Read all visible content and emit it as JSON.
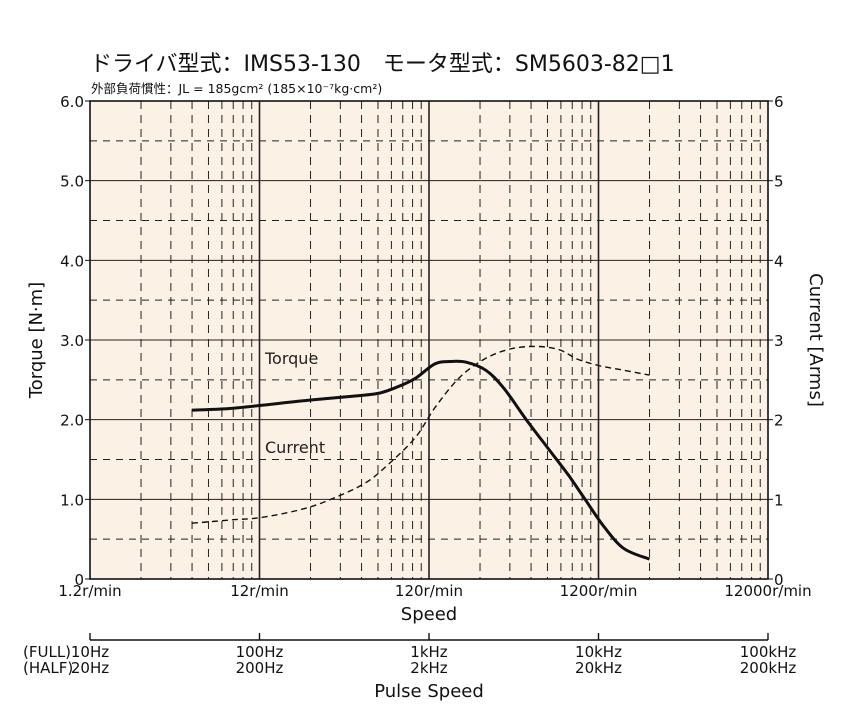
{
  "chart_data": {
    "type": "line",
    "title": "ドライバ型式：IMS53-130　モータ型式：SM5603-82□1",
    "subtitle": "外部負荷慣性：JL = 185gcm² (185×10⁻⁷kg·cm²)",
    "xlabel": "Speed",
    "ylabel_left": "Torque [N·m]",
    "ylabel_right": "Current [Arms]",
    "x_scale": "log",
    "x_ticks": [
      "1.2r/min",
      "12r/min",
      "120r/min",
      "1200r/min",
      "12000r/min"
    ],
    "x_tick_values": [
      1.2,
      12,
      120,
      1200,
      12000
    ],
    "y_left_ticks": [
      "0",
      "1.0",
      "2.0",
      "3.0",
      "4.0",
      "5.0",
      "6.0"
    ],
    "y_right_ticks": [
      "0",
      "1",
      "2",
      "3",
      "4",
      "5",
      "6"
    ],
    "ylim": [
      0,
      6
    ],
    "grid": true,
    "background": "#fbf1e5",
    "series": [
      {
        "name": "Torque",
        "axis": "left",
        "style": "solid",
        "color": "#111111",
        "x": [
          4.8,
          8,
          15,
          25,
          40,
          60,
          80,
          100,
          130,
          160,
          200,
          260,
          330,
          450,
          600,
          800,
          1000,
          1300,
          1700,
          2400
        ],
        "y": [
          2.12,
          2.14,
          2.2,
          2.25,
          2.29,
          2.33,
          2.42,
          2.52,
          2.7,
          2.73,
          2.72,
          2.62,
          2.4,
          2.0,
          1.65,
          1.3,
          1.0,
          0.65,
          0.38,
          0.25
        ]
      },
      {
        "name": "Current",
        "axis": "right",
        "style": "dashed",
        "color": "#111111",
        "x": [
          4.8,
          8,
          12,
          20,
          30,
          50,
          70,
          100,
          130,
          180,
          250,
          350,
          500,
          700,
          900,
          1200,
          1700,
          2400
        ],
        "y": [
          0.7,
          0.74,
          0.77,
          0.86,
          0.98,
          1.2,
          1.45,
          1.78,
          2.15,
          2.52,
          2.75,
          2.88,
          2.92,
          2.88,
          2.76,
          2.68,
          2.62,
          2.56
        ]
      }
    ],
    "pulse_axis": {
      "label": "Pulse Speed",
      "full_prefix": "(FULL)",
      "half_prefix": "(HALF)",
      "full": [
        "10Hz",
        "100Hz",
        "1kHz",
        "10kHz",
        "100kHz"
      ],
      "half": [
        "20Hz",
        "200Hz",
        "2kHz",
        "20kHz",
        "200kHz"
      ]
    }
  }
}
